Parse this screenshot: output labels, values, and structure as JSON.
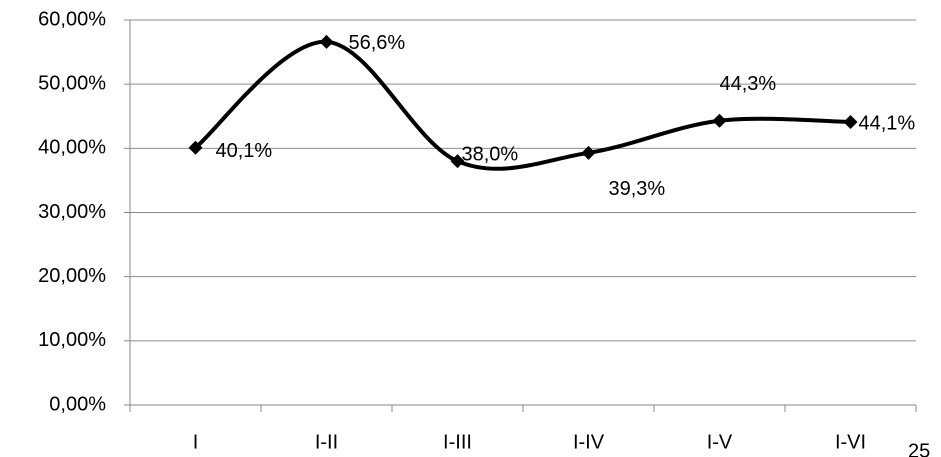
{
  "chart_data": {
    "type": "line",
    "categories": [
      "I",
      "I-II",
      "I-III",
      "I-IV",
      "I-V",
      "I-VI"
    ],
    "values": [
      40.1,
      56.6,
      38.0,
      39.3,
      44.3,
      44.1
    ],
    "value_labels": [
      "40,1%",
      "56,6%",
      "38,0%",
      "39,3%",
      "44,3%",
      "44,1%"
    ],
    "color": "#000000",
    "smooth": true,
    "ylim": [
      0,
      60
    ],
    "yticks": [
      {
        "value": 0,
        "label": "0,00%"
      },
      {
        "value": 10,
        "label": "10,00%"
      },
      {
        "value": 20,
        "label": "20,00%"
      },
      {
        "value": 30,
        "label": "30,00%"
      },
      {
        "value": 40,
        "label": "40,00%"
      },
      {
        "value": 50,
        "label": "50,00%"
      },
      {
        "value": 60,
        "label": "60,00%"
      }
    ],
    "grid": true
  },
  "page_number": "25"
}
